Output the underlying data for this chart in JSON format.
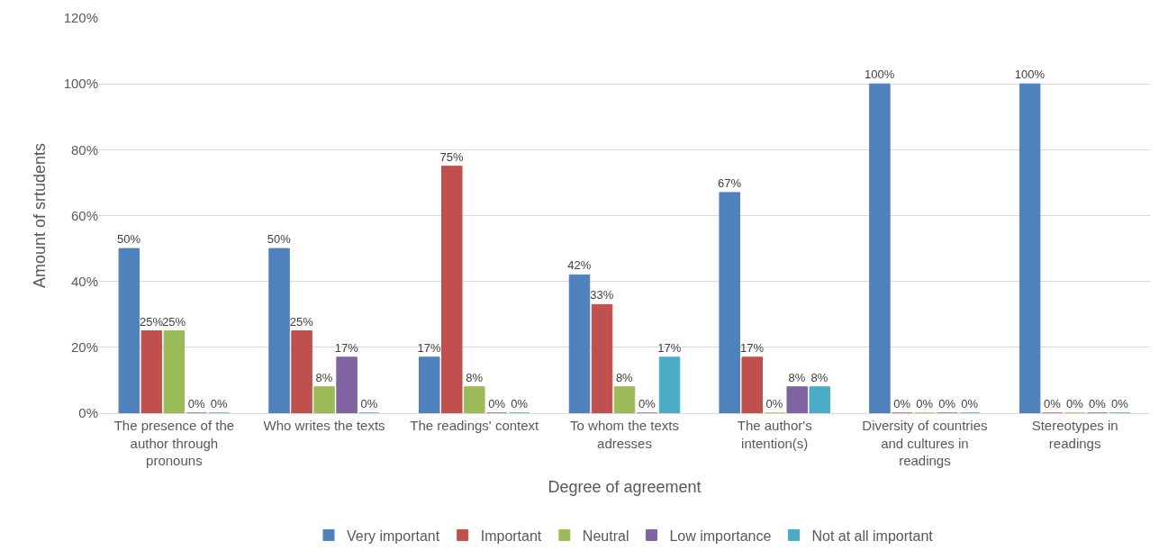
{
  "chart_data": {
    "type": "bar",
    "xlabel": "Degree of agreement",
    "ylabel": "Amount of srtudents",
    "categories": [
      "The presence of the author through pronouns",
      "Who writes the texts",
      "The readings' context",
      "To whom the texts adresses",
      "The author's intention(s)",
      "Diversity of countries and cultures in readings",
      "Stereotypes in readings"
    ],
    "series": [
      {
        "name": "Very important",
        "color": "#4f81bd",
        "values": [
          50,
          50,
          17,
          42,
          67,
          100,
          100
        ],
        "value_labels": [
          "50%",
          "50%",
          "17%",
          "42%",
          "67%",
          "100%",
          "100%"
        ]
      },
      {
        "name": "Important",
        "color": "#c0504d",
        "values": [
          25,
          25,
          75,
          33,
          17,
          0,
          0
        ],
        "value_labels": [
          "25%",
          "25%",
          "75%",
          "33%",
          "17%",
          "0%",
          "0%"
        ]
      },
      {
        "name": "Neutral",
        "color": "#9bbb59",
        "values": [
          25,
          8,
          8,
          8,
          0,
          0,
          0
        ],
        "value_labels": [
          "25%",
          "8%",
          "8%",
          "8%",
          "0%",
          "0%",
          "0%"
        ]
      },
      {
        "name": "Low importance",
        "color": "#8064a2",
        "values": [
          0,
          17,
          0,
          0,
          8,
          0,
          0
        ],
        "value_labels": [
          "0%",
          "17%",
          "0%",
          "0%",
          "8%",
          "0%",
          "0%"
        ]
      },
      {
        "name": "Not at all important",
        "color": "#4bacc6",
        "values": [
          0,
          0,
          0,
          17,
          8,
          0,
          0
        ],
        "value_labels": [
          "0%",
          "0%",
          "0%",
          "17%",
          "8%",
          "0%",
          "0%"
        ]
      }
    ],
    "ylim": [
      0,
      120
    ],
    "yticks": [
      {
        "value": 0,
        "label": "0%"
      },
      {
        "value": 20,
        "label": "20%"
      },
      {
        "value": 40,
        "label": "40%"
      },
      {
        "value": 60,
        "label": "60%"
      },
      {
        "value": 80,
        "label": "80%"
      },
      {
        "value": 100,
        "label": "100%"
      },
      {
        "value": 120,
        "label": "120%"
      }
    ],
    "grid": "y",
    "legend": "bottom"
  }
}
